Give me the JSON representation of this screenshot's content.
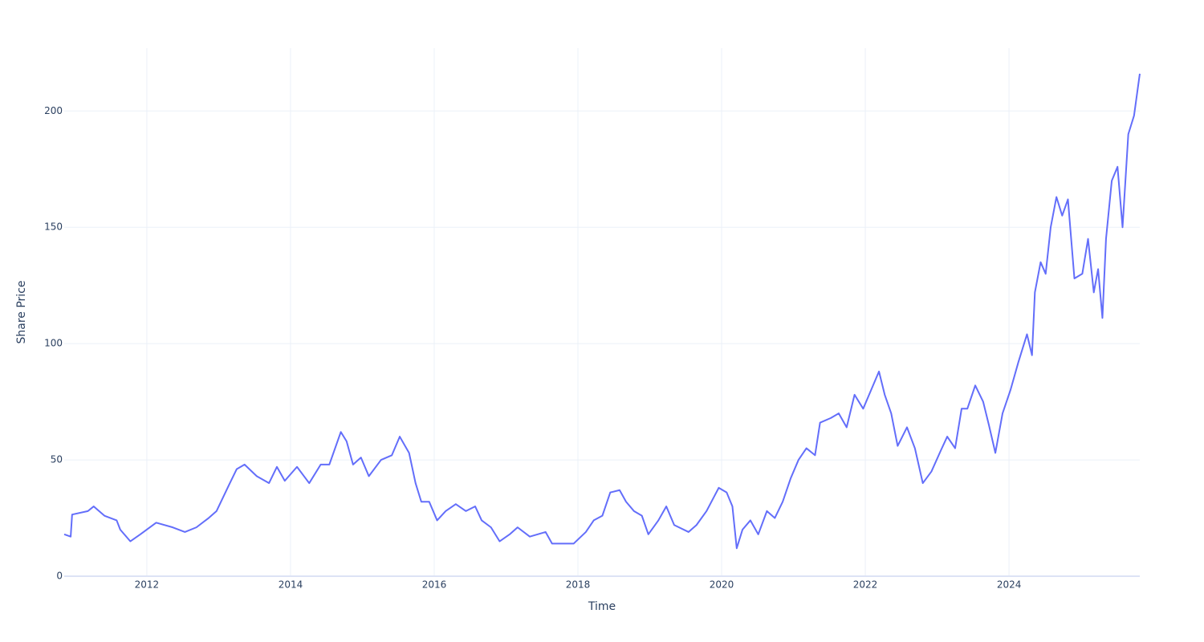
{
  "chart_data": {
    "type": "line",
    "x_label": "Time",
    "y_label": "Share Price",
    "xlim": [
      2010.85,
      2025.82
    ],
    "ylim": [
      0,
      227
    ],
    "xticks": [
      2012,
      2014,
      2016,
      2018,
      2020,
      2022,
      2024
    ],
    "yticks": [
      0,
      50,
      100,
      150,
      200
    ],
    "grid": true,
    "series": [
      {
        "color": "#636efa",
        "x": [
          2010.85,
          2010.94,
          2010.96,
          2011.18,
          2011.26,
          2011.41,
          2011.58,
          2011.63,
          2011.77,
          2011.91,
          2012.13,
          2012.36,
          2012.53,
          2012.69,
          2012.86,
          2012.97,
          2013.14,
          2013.25,
          2013.36,
          2013.53,
          2013.7,
          2013.81,
          2013.92,
          2014.09,
          2014.26,
          2014.42,
          2014.54,
          2014.7,
          2014.78,
          2014.87,
          2014.98,
          2015.09,
          2015.26,
          2015.41,
          2015.52,
          2015.65,
          2015.74,
          2015.82,
          2015.93,
          2016.04,
          2016.16,
          2016.3,
          2016.44,
          2016.57,
          2016.66,
          2016.79,
          2016.91,
          2017.05,
          2017.16,
          2017.33,
          2017.55,
          2017.64,
          2017.78,
          2017.94,
          2018.11,
          2018.22,
          2018.34,
          2018.45,
          2018.58,
          2018.67,
          2018.78,
          2018.89,
          2018.98,
          2019.12,
          2019.23,
          2019.34,
          2019.54,
          2019.65,
          2019.79,
          2019.96,
          2020.07,
          2020.15,
          2020.21,
          2020.29,
          2020.4,
          2020.51,
          2020.63,
          2020.74,
          2020.85,
          2020.96,
          2021.07,
          2021.18,
          2021.3,
          2021.37,
          2021.52,
          2021.63,
          2021.74,
          2021.85,
          2021.97,
          2022.08,
          2022.19,
          2022.27,
          2022.36,
          2022.45,
          2022.58,
          2022.69,
          2022.8,
          2022.92,
          2023.05,
          2023.14,
          2023.25,
          2023.34,
          2023.42,
          2023.53,
          2023.64,
          2023.72,
          2023.81,
          2023.91,
          2024.02,
          2024.13,
          2024.25,
          2024.32,
          2024.36,
          2024.44,
          2024.51,
          2024.58,
          2024.66,
          2024.74,
          2024.82,
          2024.91,
          2025.02,
          2025.1,
          2025.18,
          2025.24,
          2025.3,
          2025.35,
          2025.43,
          2025.51,
          2025.58,
          2025.66,
          2025.74,
          2025.82
        ],
        "values": [
          18,
          17,
          26.5,
          28,
          30,
          26,
          24,
          20,
          15,
          18,
          23,
          21,
          19,
          21,
          25,
          28,
          39,
          46,
          48,
          43,
          40,
          47,
          41,
          47,
          40,
          48,
          48,
          62,
          58,
          48,
          51,
          43,
          50,
          52,
          60,
          53,
          40,
          32,
          32,
          24,
          28,
          31,
          28,
          30,
          24,
          21,
          15,
          18,
          21,
          17,
          19,
          14,
          14,
          14,
          19,
          24,
          26,
          36,
          37,
          32,
          28,
          26,
          18,
          24,
          30,
          22,
          19,
          22,
          28,
          38,
          36,
          30,
          12,
          20,
          24,
          18,
          28,
          25,
          32,
          42,
          50,
          55,
          52,
          66,
          68,
          70,
          64,
          78,
          72,
          80,
          88,
          78,
          70,
          56,
          64,
          55,
          40,
          45,
          54,
          60,
          55,
          72,
          72,
          82,
          75,
          65,
          53,
          70,
          80,
          92,
          104,
          95,
          122,
          135,
          130,
          150,
          163,
          155,
          162,
          128,
          130,
          145,
          122,
          132,
          111,
          145,
          170,
          176,
          150,
          190,
          198,
          216
        ]
      }
    ]
  }
}
